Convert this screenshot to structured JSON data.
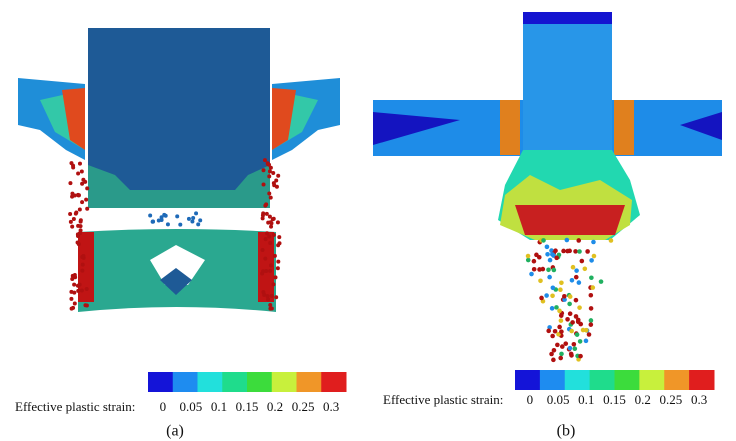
{
  "panels": [
    {
      "colorbar_label": "Effective plastic strain:",
      "ticks": [
        0,
        0.05,
        0.1,
        0.15,
        0.2,
        0.25,
        0.3
      ],
      "label": "(a)"
    },
    {
      "colorbar_label": "Effective plastic strain:",
      "ticks": [
        0,
        0.05,
        0.1,
        0.15,
        0.2,
        0.25,
        0.3
      ],
      "label": "(b)"
    }
  ],
  "colorbar_colors": [
    "#1414d8",
    "#1e8cf0",
    "#22e0dc",
    "#1fdc8c",
    "#3cdc3c",
    "#c8f03c",
    "#f09628",
    "#e01e1e"
  ]
}
